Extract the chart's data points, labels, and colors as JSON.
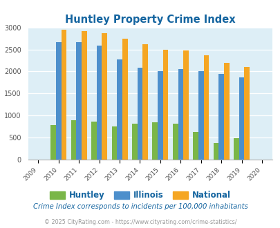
{
  "title": "Huntley Property Crime Index",
  "all_years": [
    2009,
    2010,
    2011,
    2012,
    2013,
    2014,
    2015,
    2016,
    2017,
    2018,
    2019,
    2020
  ],
  "data_years": [
    2010,
    2011,
    2012,
    2013,
    2014,
    2015,
    2016,
    2017,
    2018,
    2019
  ],
  "huntley": [
    790,
    890,
    860,
    750,
    810,
    850,
    810,
    630,
    380,
    490
  ],
  "illinois": [
    2670,
    2670,
    2590,
    2280,
    2090,
    2000,
    2050,
    2010,
    1950,
    1860
  ],
  "national": [
    2940,
    2920,
    2870,
    2750,
    2610,
    2500,
    2470,
    2360,
    2200,
    2100
  ],
  "huntley_color": "#7ab648",
  "illinois_color": "#4d8fcc",
  "national_color": "#f5a623",
  "bg_color": "#ddeef6",
  "ylim": [
    0,
    3000
  ],
  "yticks": [
    0,
    500,
    1000,
    1500,
    2000,
    2500,
    3000
  ],
  "legend_labels": [
    "Huntley",
    "Illinois",
    "National"
  ],
  "footnote1": "Crime Index corresponds to incidents per 100,000 inhabitants",
  "footnote2": "© 2025 CityRating.com - https://www.cityrating.com/crime-statistics/",
  "title_color": "#1565a0",
  "footnote1_color": "#1565a0",
  "footnote2_color": "#999999"
}
